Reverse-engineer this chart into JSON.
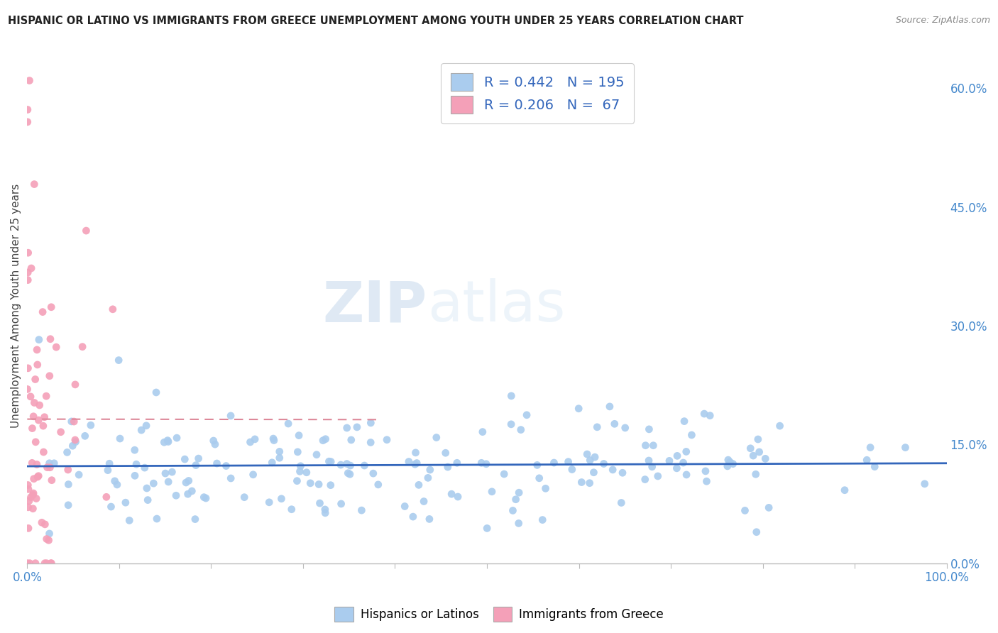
{
  "title": "HISPANIC OR LATINO VS IMMIGRANTS FROM GREECE UNEMPLOYMENT AMONG YOUTH UNDER 25 YEARS CORRELATION CHART",
  "source": "Source: ZipAtlas.com",
  "ylabel": "Unemployment Among Youth under 25 years",
  "blue_R": 0.442,
  "blue_N": 195,
  "pink_R": 0.206,
  "pink_N": 67,
  "blue_color": "#aaccee",
  "pink_color": "#f4a0b8",
  "blue_line_color": "#3366bb",
  "pink_line_color": "#dd8899",
  "watermark_ZIP": "ZIP",
  "watermark_atlas": "atlas",
  "xmin": 0.0,
  "xmax": 1.0,
  "ymin": 0.0,
  "ymax": 0.65,
  "right_yticks": [
    0.0,
    0.15,
    0.3,
    0.45,
    0.6
  ],
  "right_yticklabels": [
    "0.0%",
    "15.0%",
    "30.0%",
    "45.0%",
    "60.0%"
  ],
  "xticks": [
    0.0,
    0.1,
    0.2,
    0.3,
    0.4,
    0.5,
    0.6,
    0.7,
    0.8,
    0.9,
    1.0
  ],
  "xticklabels": [
    "0.0%",
    "",
    "",
    "",
    "",
    "",
    "",
    "",
    "",
    "",
    "100.0%"
  ],
  "background_color": "#ffffff",
  "grid_color": "#dddddd",
  "tick_color": "#4488cc",
  "title_color": "#222222",
  "source_color": "#888888",
  "ylabel_color": "#444444"
}
